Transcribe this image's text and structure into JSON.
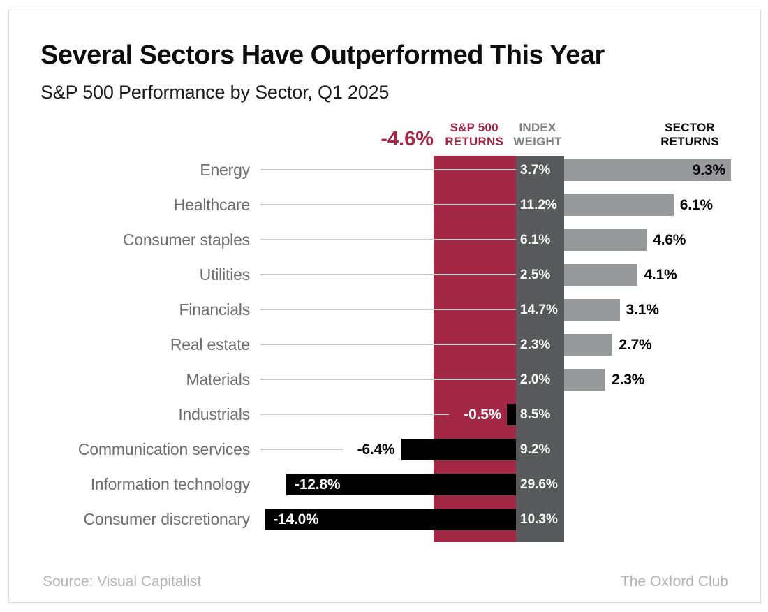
{
  "title": "Several Sectors Have Outperformed This Year",
  "subtitle": "S&P 500 Performance by Sector, Q1 2025",
  "header": {
    "benchmark_value": "-4.6%",
    "benchmark_label": [
      "S&P 500",
      "RETURNS"
    ],
    "weight_col": [
      "INDEX",
      "WEIGHT"
    ],
    "returns_col": [
      "SECTOR",
      "RETURNS"
    ]
  },
  "footer": {
    "source": "Source: Visual Capitalist",
    "brand": "The Oxford Club"
  },
  "colors": {
    "benchmark_red": "#A22845",
    "weight_band_gray": "#58595B",
    "positive_bar_gray": "#98999B",
    "negative_bar_black": "#000000",
    "sector_label_gray": "#6D6E70",
    "leader_line_gray": "#C9CACB",
    "footer_gray": "#B3B4B6"
  },
  "chart_data": {
    "type": "bar",
    "orientation": "horizontal",
    "title": "Several Sectors Have Outperformed This Year",
    "subtitle": "S&P 500 Performance by Sector, Q1 2025",
    "benchmark": {
      "name": "S&P 500 RETURNS",
      "value": -4.6,
      "label": "-4.6%"
    },
    "categories": [
      "Energy",
      "Healthcare",
      "Consumer staples",
      "Utilities",
      "Financials",
      "Real estate",
      "Materials",
      "Industrials",
      "Communication services",
      "Information technology",
      "Consumer discretionary"
    ],
    "series": [
      {
        "name": "INDEX WEIGHT",
        "unit": "%",
        "values": [
          3.7,
          11.2,
          6.1,
          2.5,
          14.7,
          2.3,
          2.0,
          8.5,
          9.2,
          29.6,
          10.3
        ],
        "labels": [
          "3.7%",
          "11.2%",
          "6.1%",
          "2.5%",
          "14.7%",
          "2.3%",
          "2.0%",
          "8.5%",
          "9.2%",
          "29.6%",
          "10.3%"
        ]
      },
      {
        "name": "SECTOR RETURNS",
        "unit": "%",
        "values": [
          9.3,
          6.1,
          4.6,
          4.1,
          3.1,
          2.7,
          2.3,
          -0.5,
          -6.4,
          -12.8,
          -14.0
        ],
        "labels": [
          "9.3%",
          "6.1%",
          "4.6%",
          "4.1%",
          "3.1%",
          "2.7%",
          "2.3%",
          "-0.5%",
          "-6.4%",
          "-12.8%",
          "-14.0%"
        ],
        "label_placement": [
          "inside-right",
          "outside-right",
          "outside-right",
          "outside-right",
          "outside-right",
          "outside-right",
          "outside-right",
          "band-left",
          "outside-left",
          "inside-left",
          "inside-left"
        ]
      }
    ],
    "xlim": [
      -14.0,
      9.3
    ],
    "grid": false,
    "legend_position": "column-headers"
  }
}
